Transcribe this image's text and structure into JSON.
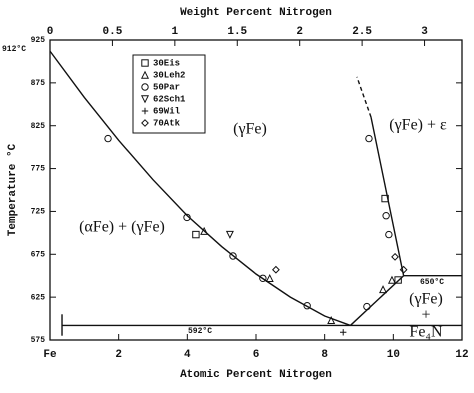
{
  "chart_data": {
    "type": "phase-diagram",
    "xlabel": "Atomic Percent Nitrogen",
    "x2label": "Weight Percent Nitrogen",
    "ylabel": "Temperature °C",
    "xlim": [
      0,
      12
    ],
    "xticks": [
      {
        "value": 0,
        "label": "Fe"
      },
      2,
      4,
      6,
      8,
      10,
      12
    ],
    "x2lim": [
      0,
      3.3
    ],
    "x2ticks": [
      0,
      0.5,
      1,
      1.5,
      2,
      2.5,
      3
    ],
    "ylim": [
      575,
      925
    ],
    "yticks": [
      575,
      625,
      675,
      725,
      775,
      825,
      875,
      925
    ],
    "boundaries": [
      {
        "x": [
          0,
          1,
          2,
          3,
          4,
          5,
          6,
          7,
          8,
          8.75
        ],
        "values": [
          912,
          858,
          808,
          762,
          720,
          684,
          652,
          625,
          603,
          592
        ],
        "dashed": false
      },
      {
        "x": [
          8.75,
          10.3
        ],
        "values": [
          592,
          650
        ],
        "dashed": false
      },
      {
        "x": [
          10.3,
          9.35
        ],
        "values": [
          650,
          835
        ],
        "dashed": false
      },
      {
        "x": [
          9.35,
          8.94
        ],
        "values": [
          835,
          882
        ],
        "dashed": true
      },
      {
        "x": [
          10.3,
          12
        ],
        "values": [
          650,
          650
        ],
        "dashed": false
      },
      {
        "x": [
          0.35,
          12
        ],
        "values": [
          592,
          592
        ],
        "dashed": false
      },
      {
        "x": [
          0.35,
          0.35
        ],
        "values": [
          580,
          605
        ],
        "dashed": false
      }
    ],
    "series": [
      {
        "name": "30Eis",
        "marker": "square",
        "color": "#111",
        "x": [
          4.25,
          10.14,
          9.76
        ],
        "values": [
          698,
          645,
          740
        ]
      },
      {
        "name": "30Leh2",
        "marker": "triangle",
        "color": "#111",
        "x": [
          4.49,
          6.4,
          8.19,
          9.7,
          9.96
        ],
        "values": [
          702,
          647,
          598,
          634,
          645
        ]
      },
      {
        "name": "50Par",
        "marker": "circle",
        "color": "#111",
        "x": [
          1.69,
          3.99,
          5.33,
          6.2,
          7.49,
          9.23,
          9.29,
          9.79,
          9.87
        ],
        "values": [
          810,
          718,
          673,
          647,
          615,
          614,
          810,
          720,
          698
        ]
      },
      {
        "name": "62Sch1",
        "marker": "invtriangle",
        "color": "#111",
        "x": [
          5.24
        ],
        "values": [
          698
        ]
      },
      {
        "name": "69Wil",
        "marker": "plus",
        "color": "#111",
        "x": [
          8.54
        ],
        "values": [
          584
        ]
      },
      {
        "name": "70Atk",
        "marker": "diamond",
        "color": "#111",
        "x": [
          6.58,
          10.3,
          10.05
        ],
        "values": [
          657,
          657,
          672
        ]
      }
    ],
    "annotations": [
      "912°C",
      "592°C",
      "650°C"
    ],
    "regions": [
      "(γFe)",
      "(γFe) + ε",
      "(αFe) + (γFe)",
      "(γFe)",
      "+",
      "Fe₄N"
    ]
  }
}
